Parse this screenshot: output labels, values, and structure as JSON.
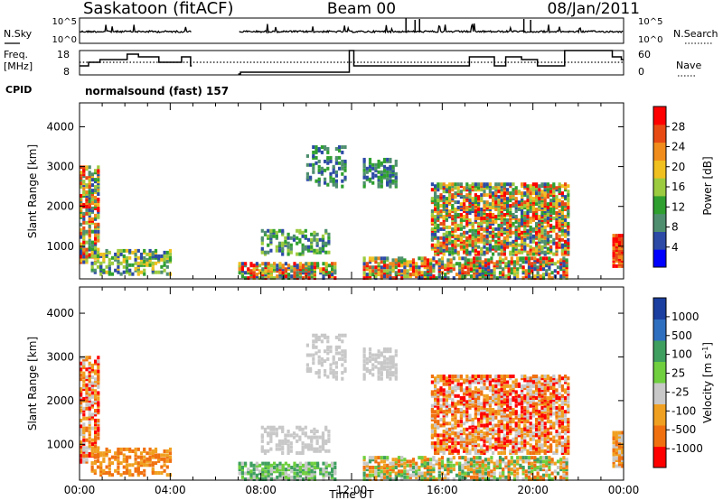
{
  "header": {
    "site": "Saskatoon (fitACF)",
    "beam": "Beam 00",
    "date": "08/Jan/2011"
  },
  "labels": {
    "nsky": "N.Sky",
    "nsearch": "N.Search",
    "freq_line1": "Freq.",
    "freq_line2": "[MHz]",
    "nave": "Nave",
    "cpid": "CPID",
    "cpid_value": "normalsound (fast) 157",
    "noise_tick_hi": "10^5",
    "noise_tick_lo": "10^0",
    "noise_tick_hi_r": "10^5",
    "noise_tick_lo_r": "10^0",
    "freq_ticks": [
      "18",
      "8"
    ],
    "nave_ticks": [
      "60",
      "0"
    ]
  },
  "chart_data": [
    {
      "type": "heatmap",
      "panel": "power",
      "ylabel": "Slant Range [km]",
      "ylim": [
        180,
        4600
      ],
      "y_ticks": [
        "1000",
        "2000",
        "3000",
        "4000"
      ],
      "x_ticks": [
        "00:00",
        "04:00",
        "08:00",
        "12:00",
        "16:00",
        "20:00",
        "00:00"
      ],
      "xlim_hours": [
        0,
        24
      ],
      "colorbar": {
        "label": "Power [dB]",
        "ticks": [
          "4",
          "8",
          "12",
          "16",
          "20",
          "24",
          "28"
        ],
        "range": [
          0,
          30
        ],
        "colors": [
          "#0000ff",
          "#2c4aa6",
          "#4f8f6f",
          "#2fa02f",
          "#9ccb3f",
          "#f0c020",
          "#f08c1c",
          "#e84a14",
          "#ff0000"
        ]
      },
      "echo_regions": [
        {
          "start": "00:00",
          "end": "00:50",
          "range_km": [
            600,
            3000
          ],
          "power_db": "4-28"
        },
        {
          "start": "00:30",
          "end": "04:00",
          "range_km": [
            300,
            900
          ],
          "power_db": "4-20"
        },
        {
          "start": "07:00",
          "end": "11:20",
          "range_km": [
            200,
            600
          ],
          "power_db": "4-28"
        },
        {
          "start": "08:00",
          "end": "11:00",
          "range_km": [
            800,
            1400
          ],
          "power_db": "4-16"
        },
        {
          "start": "10:00",
          "end": "11:40",
          "range_km": [
            2500,
            3500
          ],
          "power_db": "4-12"
        },
        {
          "start": "12:30",
          "end": "21:30",
          "range_km": [
            200,
            700
          ],
          "power_db": "4-28"
        },
        {
          "start": "12:30",
          "end": "14:00",
          "range_km": [
            2500,
            3200
          ],
          "power_db": "4-12"
        },
        {
          "start": "15:30",
          "end": "21:30",
          "range_km": [
            800,
            2600
          ],
          "power_db": "4-28"
        },
        {
          "start": "23:30",
          "end": "24:00",
          "range_km": [
            500,
            1300
          ],
          "power_db": "20-28"
        }
      ]
    },
    {
      "type": "heatmap",
      "panel": "velocity",
      "ylabel": "Slant Range [km]",
      "ylim": [
        180,
        4600
      ],
      "y_ticks": [
        "1000",
        "2000",
        "3000",
        "4000"
      ],
      "x_ticks": [
        "00:00",
        "04:00",
        "08:00",
        "12:00",
        "16:00",
        "20:00",
        "00:00"
      ],
      "xlabel": "Time UT",
      "colorbar": {
        "label": "Velocity [m s^-1]",
        "ticks": [
          "1000",
          "500",
          "100",
          "25",
          "-25",
          "-100",
          "-500",
          "-1000"
        ],
        "colors": [
          "#1b3fa0",
          "#2f6fc0",
          "#3f9f5f",
          "#6fcf3f",
          "#c8c8c8",
          "#f0a020",
          "#f07010",
          "#ff0000"
        ]
      }
    },
    {
      "type": "line",
      "panel": "noise",
      "series": [
        {
          "name": "N.Sky",
          "style": "solid"
        },
        {
          "name": "N.Search",
          "style": "dotted"
        }
      ]
    },
    {
      "type": "line",
      "panel": "frequency",
      "ylim_left": [
        8,
        18
      ],
      "ylim_right": [
        0,
        60
      ],
      "series": [
        {
          "name": "Freq.",
          "style": "solid"
        },
        {
          "name": "Nave",
          "style": "dotted"
        }
      ]
    }
  ]
}
